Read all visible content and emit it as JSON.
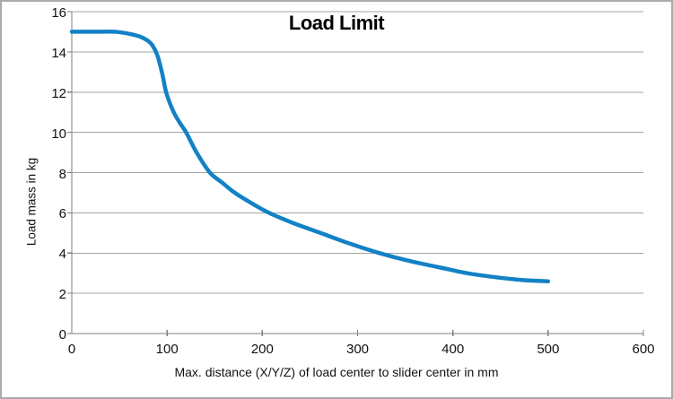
{
  "chart_data": {
    "type": "line",
    "title": "Load Limit",
    "xlabel": "Max. distance (X/Y/Z) of load center to slider center in mm",
    "ylabel": "Load mass in kg",
    "xlim": [
      0,
      600
    ],
    "ylim": [
      0,
      16
    ],
    "x_ticks": [
      "0",
      "100",
      "200",
      "300",
      "400",
      "500",
      "600"
    ],
    "y_ticks": [
      "0",
      "2",
      "4",
      "6",
      "8",
      "10",
      "12",
      "14",
      "16"
    ],
    "grid": "horizontal-only",
    "legend_position": "none",
    "series": [
      {
        "name": "Load limit curve",
        "color": "#1381C5",
        "points": [
          [
            0,
            15.0
          ],
          [
            25,
            15.0
          ],
          [
            45,
            15.0
          ],
          [
            60,
            14.9
          ],
          [
            72,
            14.75
          ],
          [
            80,
            14.55
          ],
          [
            85,
            14.3
          ],
          [
            90,
            13.8
          ],
          [
            95,
            12.9
          ],
          [
            99,
            12.0
          ],
          [
            106,
            11.1
          ],
          [
            113,
            10.5
          ],
          [
            120,
            10.0
          ],
          [
            131,
            9.0
          ],
          [
            145,
            8.0
          ],
          [
            158,
            7.5
          ],
          [
            171,
            7.0
          ],
          [
            188,
            6.5
          ],
          [
            207,
            6.0
          ],
          [
            232,
            5.5
          ],
          [
            261,
            5.0
          ],
          [
            290,
            4.5
          ],
          [
            323,
            4.0
          ],
          [
            355,
            3.6
          ],
          [
            385,
            3.3
          ],
          [
            415,
            3.0
          ],
          [
            445,
            2.8
          ],
          [
            475,
            2.65
          ],
          [
            500,
            2.6
          ]
        ]
      }
    ],
    "colors": {
      "grid": "#A3A3A3",
      "axis": "#7F7F7F",
      "tick_text": "#111111",
      "title_text": "#000000",
      "frame_border": "#ABABAB",
      "background": "#FFFFFF"
    }
  }
}
